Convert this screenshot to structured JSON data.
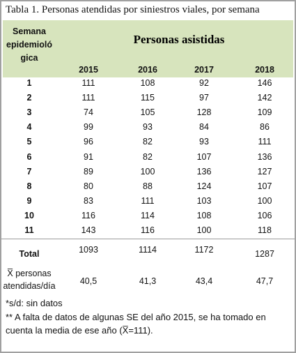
{
  "title": "Tabla 1. Personas atendidas por siniestros viales, por semana",
  "table": {
    "header": {
      "week": [
        "Semana",
        "epidemioló",
        "gica"
      ],
      "group": "Personas asistidas",
      "years": [
        "2015",
        "2016",
        "2017",
        "2018"
      ]
    },
    "rows": [
      [
        "1",
        111,
        108,
        92,
        146
      ],
      [
        "2",
        111,
        115,
        97,
        142
      ],
      [
        "3",
        74,
        105,
        128,
        109
      ],
      [
        "4",
        99,
        93,
        84,
        86
      ],
      [
        "5",
        96,
        82,
        93,
        111
      ],
      [
        "6",
        91,
        82,
        107,
        136
      ],
      [
        "7",
        89,
        100,
        136,
        127
      ],
      [
        "8",
        80,
        88,
        124,
        107
      ],
      [
        "9",
        83,
        111,
        103,
        100
      ],
      [
        "10",
        116,
        114,
        108,
        106
      ],
      [
        "11",
        143,
        116,
        100,
        118
      ]
    ],
    "total": {
      "label": "Total",
      "values": [
        1093,
        1114,
        1172,
        1287
      ]
    },
    "mean": {
      "label": [
        "X̅ personas",
        "atendidas/día"
      ],
      "values": [
        "40,5",
        "41,3",
        "43,4",
        "47,7"
      ]
    }
  },
  "notes": [
    "*s/d: sin datos",
    "** A falta de datos de algunas SE del año 2015, se ha tomado en cuenta la media de ese año (X̅=111)."
  ]
}
